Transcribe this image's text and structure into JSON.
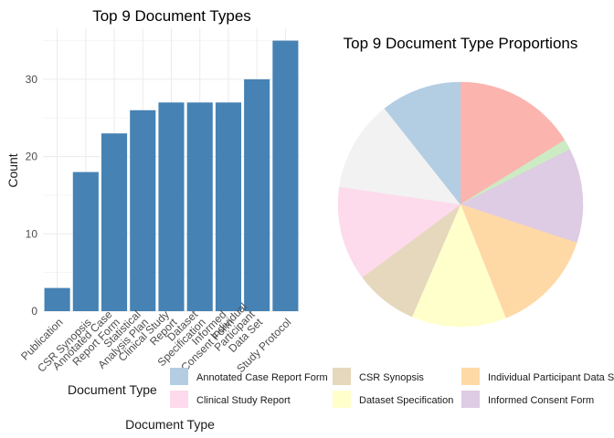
{
  "chart_data": [
    {
      "type": "bar",
      "title": "Top 9 Document Types",
      "xlabel": "Document Type",
      "ylabel": "Count",
      "categories": [
        "Publication",
        "CSR Synopsis",
        "Annotated Case Report Form",
        "Statistical Analysis Plan",
        "Clinical Study Report",
        "Dataset Specification",
        "Informed Consent Form",
        "Individual Participant Data Set",
        "Study Protocol"
      ],
      "values": [
        3,
        18,
        23,
        26,
        27,
        27,
        27,
        30,
        35
      ],
      "yticks": [
        "0",
        "10",
        "20",
        "30"
      ],
      "ylim": [
        0,
        36.6
      ],
      "bar_color": "#4682B4",
      "grid": true
    },
    {
      "type": "pie",
      "title": "Top 9 Document Type Proportions",
      "legend_title": "Document Type",
      "slices": [
        {
          "label": "Study Protocol",
          "value": 35,
          "color": "#FBB4AE"
        },
        {
          "label": "Publication",
          "value": 3,
          "color": "#CCEBC5"
        },
        {
          "label": "Informed Consent Form",
          "value": 27,
          "color": "#DECBE4"
        },
        {
          "label": "Individual Participant Data Set",
          "value": 30,
          "color": "#FED9A6"
        },
        {
          "label": "Dataset Specification",
          "value": 27,
          "color": "#FFFFCC"
        },
        {
          "label": "CSR Synopsis",
          "value": 18,
          "color": "#E5D8BD"
        },
        {
          "label": "Clinical Study Report",
          "value": 27,
          "color": "#FDDAEC"
        },
        {
          "label": "Statistical Analysis Plan",
          "value": 26,
          "color": "#F2F2F2"
        },
        {
          "label": "Annotated Case Report Form",
          "value": 23,
          "color": "#B3CDE3"
        }
      ],
      "legend": [
        {
          "label": "Annotated Case Report Form",
          "color": "#B3CDE3"
        },
        {
          "label": "CSR Synopsis",
          "color": "#E5D8BD"
        },
        {
          "label": "Individual Participant Data Set",
          "color": "#FED9A6"
        },
        {
          "label": "Clinical Study Report",
          "color": "#FDDAEC"
        },
        {
          "label": "Dataset Specification",
          "color": "#FFFFCC"
        },
        {
          "label": "Informed Consent Form",
          "color": "#DECBE4"
        }
      ],
      "legend_placement": "bottom"
    }
  ]
}
